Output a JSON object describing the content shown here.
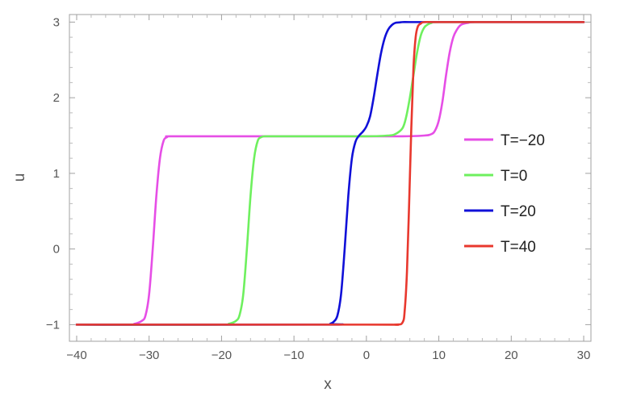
{
  "chart_data": {
    "type": "line",
    "title": "",
    "xlabel": "x",
    "ylabel": "u",
    "xlim": [
      -41,
      31
    ],
    "ylim": [
      -1.22,
      3.1
    ],
    "x_ticks": [
      -40,
      -30,
      -20,
      -10,
      0,
      10,
      20,
      30
    ],
    "y_ticks": [
      -1,
      0,
      1,
      2,
      3
    ],
    "x_tick_labels": [
      "−40",
      "−30",
      "−20",
      "−10",
      "0",
      "10",
      "20",
      "30"
    ],
    "y_tick_labels": [
      "−1",
      "0",
      "1",
      "2",
      "3"
    ],
    "grid": false,
    "frame": true,
    "legend_position": "right",
    "series": [
      {
        "name": "T=−20",
        "color": "#e64ee6",
        "x": [
          -40,
          -33,
          -32,
          -31,
          -30.5,
          -30,
          -29.5,
          -29,
          -28.5,
          -28,
          -27.5,
          -27,
          -20,
          -10,
          0,
          5,
          8,
          9,
          9.5,
          10,
          10.5,
          11,
          11.5,
          12,
          12.5,
          13,
          13.5,
          14,
          15,
          20,
          30
        ],
        "y": [
          -1,
          -1,
          -0.99,
          -0.95,
          -0.88,
          -0.6,
          0.0,
          0.7,
          1.2,
          1.43,
          1.48,
          1.49,
          1.49,
          1.49,
          1.49,
          1.49,
          1.5,
          1.52,
          1.57,
          1.7,
          1.95,
          2.3,
          2.6,
          2.8,
          2.9,
          2.96,
          2.98,
          2.99,
          3,
          3,
          3
        ]
      },
      {
        "name": "T=0",
        "color": "#6ef05e",
        "x": [
          -40,
          -20,
          -19,
          -18,
          -17.5,
          -17,
          -16.5,
          -16,
          -15.5,
          -15,
          -14.5,
          -14,
          -13,
          -5,
          0,
          3,
          4,
          5,
          5.5,
          6,
          6.5,
          7,
          7.5,
          8,
          8.5,
          9,
          10,
          20,
          30
        ],
        "y": [
          -1,
          -1,
          -0.99,
          -0.95,
          -0.87,
          -0.6,
          0.0,
          0.7,
          1.2,
          1.43,
          1.48,
          1.49,
          1.49,
          1.49,
          1.49,
          1.5,
          1.52,
          1.6,
          1.75,
          2.0,
          2.3,
          2.6,
          2.82,
          2.93,
          2.97,
          2.99,
          3,
          3,
          3
        ]
      },
      {
        "name": "T=20",
        "color": "#1010d8",
        "x": [
          -40,
          -6,
          -5,
          -4.5,
          -4,
          -3.5,
          -3,
          -2.5,
          -2,
          -1.5,
          -1,
          -0.5,
          0,
          0.5,
          1,
          1.5,
          2,
          2.5,
          3,
          3.5,
          4,
          4.5,
          5,
          6,
          10,
          20,
          30
        ],
        "y": [
          -1,
          -1,
          -0.99,
          -0.96,
          -0.88,
          -0.6,
          0.0,
          0.7,
          1.2,
          1.42,
          1.5,
          1.55,
          1.62,
          1.75,
          2.0,
          2.3,
          2.58,
          2.78,
          2.9,
          2.96,
          2.99,
          2.995,
          3,
          3,
          3,
          3,
          3
        ]
      },
      {
        "name": "T=40",
        "color": "#e8382e",
        "x": [
          -40,
          0,
          4,
          5,
          5.3,
          5.6,
          5.9,
          6.2,
          6.5,
          6.8,
          7.1,
          7.5,
          8,
          10,
          20,
          30
        ],
        "y": [
          -1,
          -1,
          -1,
          -0.97,
          -0.8,
          -0.3,
          0.6,
          1.6,
          2.4,
          2.8,
          2.94,
          2.98,
          3,
          3,
          3,
          3
        ]
      }
    ]
  }
}
